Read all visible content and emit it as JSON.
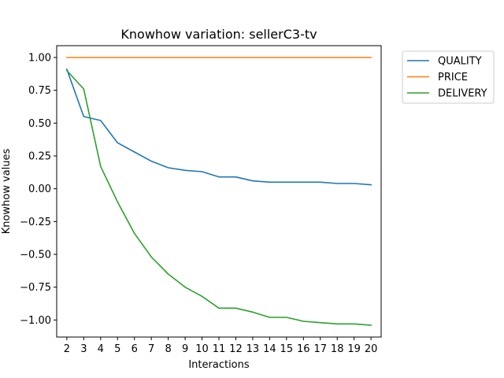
{
  "chart_data": {
    "type": "line",
    "title": "Knowhow variation: sellerC3-tv",
    "xlabel": "Interactions",
    "ylabel": "Knowhow values",
    "x": [
      2,
      3,
      4,
      5,
      6,
      7,
      8,
      9,
      10,
      11,
      12,
      13,
      14,
      15,
      16,
      17,
      18,
      19,
      20
    ],
    "xlim": [
      1.4,
      20.6
    ],
    "ylim": [
      -1.13,
      1.09
    ],
    "yticks": [
      -1.0,
      -0.75,
      -0.5,
      -0.25,
      0.0,
      0.25,
      0.5,
      0.75,
      1.0
    ],
    "ytick_labels": [
      "−1.00",
      "−0.75",
      "−0.50",
      "−0.25",
      "0.00",
      "0.25",
      "0.50",
      "0.75",
      "1.00"
    ],
    "grid": false,
    "legend_position": "outside-top-right",
    "series": [
      {
        "name": "QUALITY",
        "color": "#1f77b4",
        "values": [
          0.91,
          0.55,
          0.52,
          0.35,
          0.28,
          0.21,
          0.16,
          0.14,
          0.13,
          0.09,
          0.09,
          0.06,
          0.05,
          0.05,
          0.05,
          0.05,
          0.04,
          0.04,
          0.03
        ]
      },
      {
        "name": "PRICE",
        "color": "#ff7f0e",
        "values": [
          1.0,
          1.0,
          1.0,
          1.0,
          1.0,
          1.0,
          1.0,
          1.0,
          1.0,
          1.0,
          1.0,
          1.0,
          1.0,
          1.0,
          1.0,
          1.0,
          1.0,
          1.0,
          1.0
        ]
      },
      {
        "name": "DELIVERY",
        "color": "#2ca02c",
        "values": [
          0.9,
          0.76,
          0.17,
          -0.1,
          -0.34,
          -0.52,
          -0.65,
          -0.75,
          -0.82,
          -0.91,
          -0.91,
          -0.94,
          -0.98,
          -0.98,
          -1.01,
          -1.02,
          -1.03,
          -1.03,
          -1.04
        ]
      }
    ]
  }
}
